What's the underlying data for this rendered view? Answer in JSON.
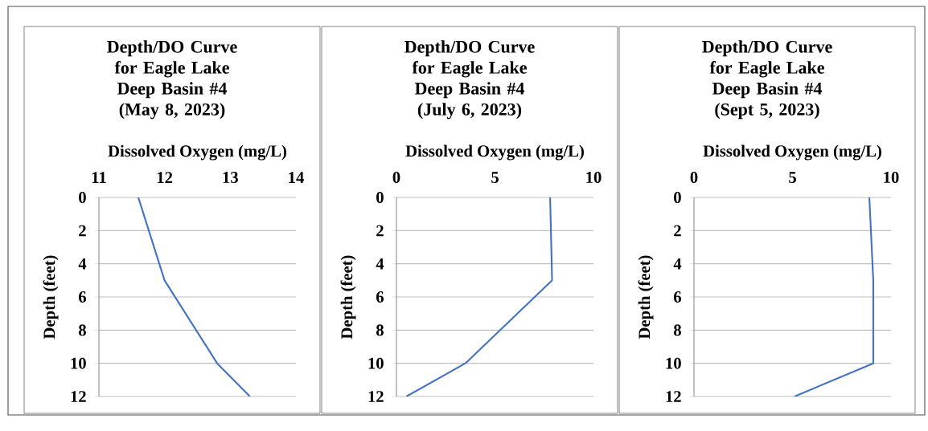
{
  "chart_data": [
    {
      "type": "line",
      "title": "Depth/DO Curve for Eagle Lake Deep Basin #4",
      "subtitle": "(May 8, 2023)",
      "xlabel": "Dissolved Oxygen (mg/L)",
      "ylabel": "Depth (feet)",
      "x": [
        11.6,
        12.0,
        12.8,
        13.3
      ],
      "values": [
        0,
        5,
        10,
        12
      ],
      "color": "#4472c4",
      "xlim": [
        11,
        14
      ],
      "xticks": [
        11,
        12,
        13,
        14
      ],
      "ylim": [
        12,
        0
      ],
      "yticks": [
        0,
        2,
        4,
        6,
        8,
        10,
        12
      ],
      "grid": "y"
    },
    {
      "type": "line",
      "title": "Depth/DO Curve for Eagle Lake Deep Basin #4",
      "subtitle": "(July 6, 2023)",
      "xlabel": "Dissolved Oxygen (mg/L)",
      "ylabel": "Depth (feet)",
      "x": [
        7.8,
        7.9,
        3.5,
        0.5
      ],
      "values": [
        0,
        5,
        10,
        12
      ],
      "color": "#4472c4",
      "xlim": [
        0,
        10
      ],
      "xticks": [
        0,
        5,
        10
      ],
      "ylim": [
        12,
        0
      ],
      "yticks": [
        0,
        2,
        4,
        6,
        8,
        10,
        12
      ],
      "grid": "y"
    },
    {
      "type": "line",
      "title": "Depth/DO Curve for Eagle Lake Deep Basin #4",
      "subtitle": "(Sept 5, 2023)",
      "xlabel": "Dissolved Oxygen (mg/L)",
      "ylabel": "Depth (feet)",
      "x": [
        8.9,
        9.1,
        9.1,
        5.1
      ],
      "values": [
        0,
        5,
        10,
        12
      ],
      "color": "#4472c4",
      "xlim": [
        0,
        10
      ],
      "xticks": [
        0,
        5,
        10
      ],
      "ylim": [
        12,
        0
      ],
      "yticks": [
        0,
        2,
        4,
        6,
        8,
        10,
        12
      ],
      "grid": "y"
    }
  ]
}
